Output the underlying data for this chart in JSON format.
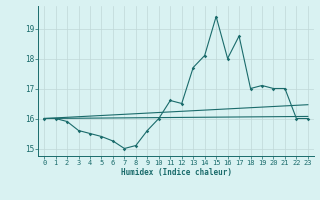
{
  "x": [
    0,
    1,
    2,
    3,
    4,
    5,
    6,
    7,
    8,
    9,
    10,
    11,
    12,
    13,
    14,
    15,
    16,
    17,
    18,
    19,
    20,
    21,
    22,
    23
  ],
  "line_main": [
    16.0,
    16.0,
    15.9,
    15.6,
    15.5,
    15.4,
    15.25,
    15.0,
    15.1,
    15.6,
    16.0,
    16.6,
    16.5,
    17.7,
    18.1,
    19.4,
    18.0,
    18.75,
    17.0,
    17.1,
    17.0,
    17.0,
    16.0,
    16.0
  ],
  "trend_upper": [
    16.0,
    16.02,
    16.04,
    16.06,
    16.08,
    16.1,
    16.12,
    16.14,
    16.16,
    16.18,
    16.2,
    16.22,
    16.24,
    16.26,
    16.28,
    16.3,
    16.32,
    16.34,
    16.36,
    16.38,
    16.4,
    16.42,
    16.44,
    16.46
  ],
  "trend_lower": [
    16.0,
    16.003,
    16.006,
    16.009,
    16.012,
    16.015,
    16.018,
    16.021,
    16.024,
    16.027,
    16.03,
    16.033,
    16.036,
    16.039,
    16.042,
    16.045,
    16.048,
    16.051,
    16.054,
    16.057,
    16.06,
    16.063,
    16.066,
    16.069
  ],
  "line_color": "#1a6b6b",
  "bg_color": "#d9f2f2",
  "grid_color": "#c0d8d8",
  "xlabel": "Humidex (Indice chaleur)",
  "ylim": [
    14.75,
    19.75
  ],
  "xlim": [
    -0.5,
    23.5
  ],
  "yticks": [
    15,
    16,
    17,
    18,
    19
  ],
  "xticks": [
    0,
    1,
    2,
    3,
    4,
    5,
    6,
    7,
    8,
    9,
    10,
    11,
    12,
    13,
    14,
    15,
    16,
    17,
    18,
    19,
    20,
    21,
    22,
    23
  ]
}
